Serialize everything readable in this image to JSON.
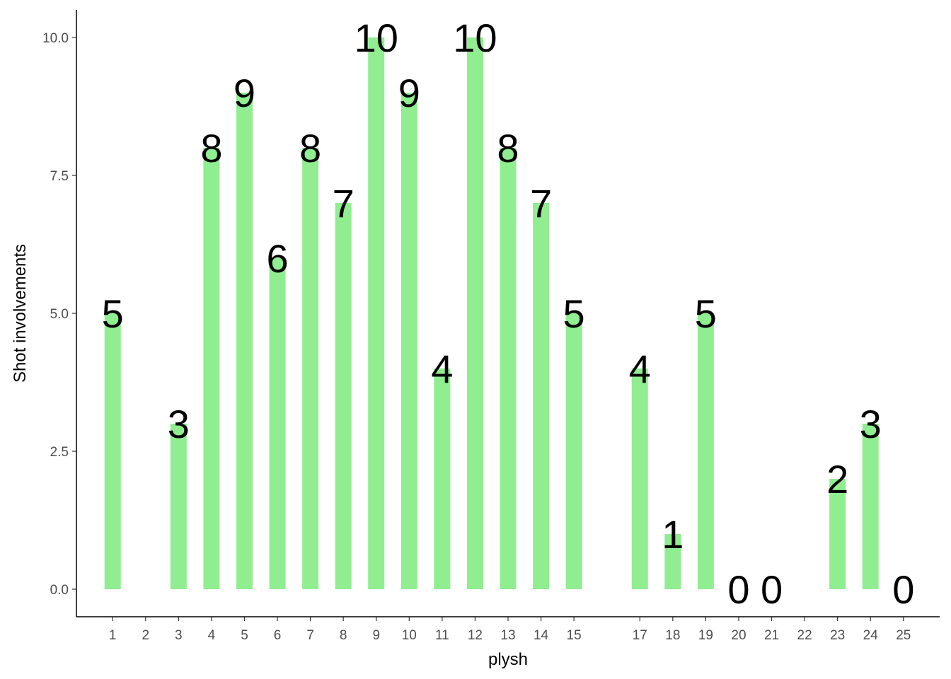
{
  "chart_data": {
    "type": "bar",
    "xlabel": "plysh",
    "ylabel": "Shot involvements",
    "x_ticks": [
      "1",
      "2",
      "3",
      "4",
      "5",
      "6",
      "7",
      "8",
      "9",
      "10",
      "11",
      "12",
      "13",
      "14",
      "15",
      "17",
      "18",
      "19",
      "20",
      "21",
      "22",
      "23",
      "24",
      "25"
    ],
    "bars": [
      {
        "x": 1,
        "value": 5,
        "label": "5"
      },
      {
        "x": 3,
        "value": 3,
        "label": "3"
      },
      {
        "x": 4,
        "value": 8,
        "label": "8"
      },
      {
        "x": 5,
        "value": 9,
        "label": "9"
      },
      {
        "x": 6,
        "value": 6,
        "label": "6"
      },
      {
        "x": 7,
        "value": 8,
        "label": "8"
      },
      {
        "x": 8,
        "value": 7,
        "label": "7"
      },
      {
        "x": 9,
        "value": 10,
        "label": "10"
      },
      {
        "x": 10,
        "value": 9,
        "label": "9"
      },
      {
        "x": 11,
        "value": 4,
        "label": "4"
      },
      {
        "x": 12,
        "value": 10,
        "label": "10"
      },
      {
        "x": 13,
        "value": 8,
        "label": "8"
      },
      {
        "x": 14,
        "value": 7,
        "label": "7"
      },
      {
        "x": 15,
        "value": 5,
        "label": "5"
      },
      {
        "x": 17,
        "value": 4,
        "label": "4"
      },
      {
        "x": 18,
        "value": 1,
        "label": "1"
      },
      {
        "x": 19,
        "value": 5,
        "label": "5"
      },
      {
        "x": 20,
        "value": 0,
        "label": "0"
      },
      {
        "x": 21,
        "value": 0,
        "label": "0"
      },
      {
        "x": 23,
        "value": 2,
        "label": "2"
      },
      {
        "x": 24,
        "value": 3,
        "label": "3"
      },
      {
        "x": 25,
        "value": 0,
        "label": "0"
      }
    ],
    "y_ticks": [
      "0.0",
      "2.5",
      "5.0",
      "7.5",
      "10.0"
    ],
    "y_tick_values": [
      0,
      2.5,
      5,
      7.5,
      10
    ],
    "ylim": [
      -0.5,
      10.5
    ],
    "xlim": [
      -0.1,
      26.1
    ],
    "bar_color": "#90EE90",
    "grid": false,
    "legend": "none"
  }
}
